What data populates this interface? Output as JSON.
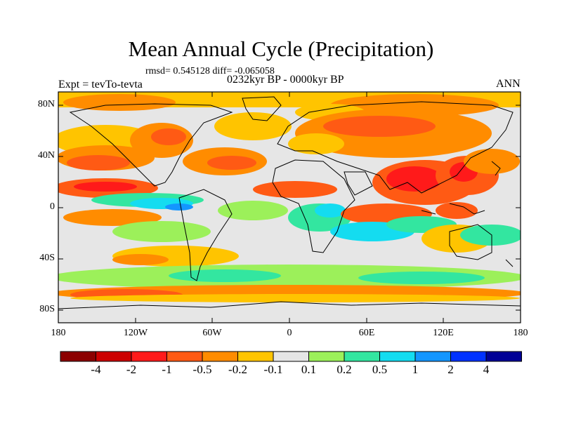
{
  "title": "Mean Annual Cycle (Precipitation)",
  "stats": "rmsd= 0.545128 diff= -0.065058",
  "period": "0232kyr BP - 0000kyr BP",
  "left_label": "Expt = tevTo-tevta",
  "right_label": "ANN",
  "map": {
    "projection": "cylindrical equidistant",
    "lon_range": [
      -180,
      180
    ],
    "lat_range": [
      -90,
      90
    ],
    "y_ticks": [
      "80N",
      "40N",
      "0",
      "40S",
      "80S"
    ],
    "x_ticks": [
      "180",
      "120W",
      "60W",
      "0",
      "60E",
      "120E",
      "180"
    ]
  },
  "colorbar": {
    "labels": [
      "-4",
      "-2",
      "-1",
      "-0.5",
      "-0.2",
      "-0.1",
      "0.1",
      "0.2",
      "0.5",
      "1",
      "2",
      "4"
    ],
    "colors": [
      "#8c0000",
      "#cc0000",
      "#ff1a1a",
      "#ff5a14",
      "#ff8c00",
      "#ffc400",
      "#e5e5e5",
      "#9cf05a",
      "#33e6a0",
      "#14dcf0",
      "#1496ff",
      "#0032ff",
      "#000096"
    ]
  }
}
